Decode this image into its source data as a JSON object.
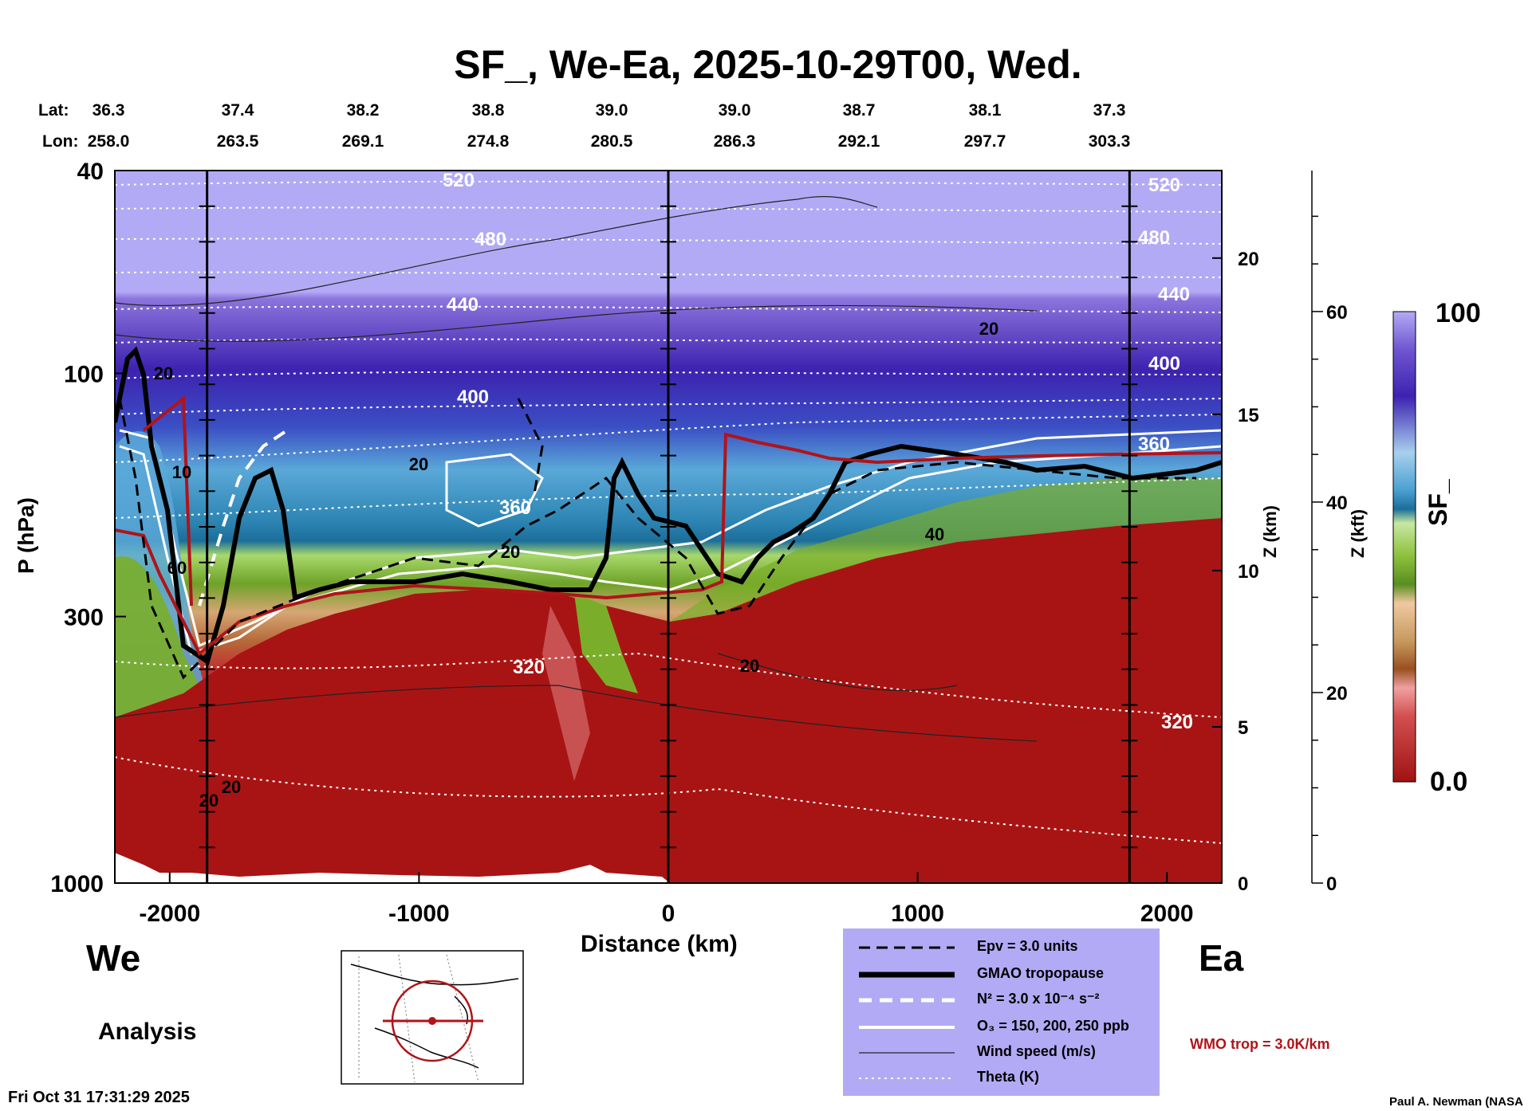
{
  "chart_data": {
    "type": "heatmap",
    "title": "SF_, We-Ea, 2025-10-29T00, Wed.",
    "xlabel": "Distance (km)",
    "ylabel": "P (hPa)",
    "y2label": "Z (km)",
    "y3label": "Z (kft)",
    "colorbar_label": "SF_",
    "colorbar_max_label": "100",
    "colorbar_min_label": "0.0",
    "xlim": [
      -2220,
      2220
    ],
    "ylim": [
      1000,
      40
    ],
    "x_ticks": [
      "-2000",
      "-1000",
      "0",
      "1000",
      "2000"
    ],
    "x_tick_values": [
      -2000,
      -1000,
      0,
      1000,
      2000
    ],
    "y_ticks": [
      "40",
      "100",
      "300",
      "1000"
    ],
    "y_tick_values": [
      40,
      100,
      300,
      1000
    ],
    "z_km_ticks": [
      "0",
      "5",
      "10",
      "15",
      "20"
    ],
    "z_km_values": [
      0,
      5,
      10,
      15,
      20
    ],
    "z_kft_ticks": [
      "0",
      "20",
      "40",
      "60"
    ],
    "z_kft_values": [
      0,
      20,
      40,
      60
    ],
    "lat_label": "Lat:",
    "lon_label": "Lon:",
    "lat": [
      "36.3",
      "37.4",
      "38.2",
      "38.8",
      "39.0",
      "39.0",
      "38.7",
      "38.1",
      "37.3"
    ],
    "lon": [
      "258.0",
      "263.5",
      "269.1",
      "274.8",
      "280.5",
      "286.3",
      "292.1",
      "297.7",
      "303.3"
    ],
    "vertical_lines_km": [
      -1850,
      0,
      1850
    ],
    "theta_labels": [
      "520",
      "480",
      "440",
      "400",
      "360",
      "320",
      "520",
      "480",
      "440",
      "400",
      "360",
      "320"
    ],
    "wind_labels": [
      "20",
      "20",
      "20",
      "20",
      "20",
      "20",
      "20",
      "40",
      "10",
      "60"
    ],
    "left_label": "We",
    "right_label": "Ea",
    "analysis_label": "Analysis",
    "timestamp": "Fri Oct 31 17:31:29 2025",
    "credit": "Paul A. Newman (NASA"
  },
  "legend": {
    "items": [
      {
        "label": "Epv = 3.0 units",
        "style": "dashed-black"
      },
      {
        "label": "GMAO tropopause",
        "style": "thick-black"
      },
      {
        "label": "N² = 3.0 x 10⁻⁴ s⁻²",
        "style": "dashed-white"
      },
      {
        "label": "O₃ = 150, 200, 250 ppb",
        "style": "solid-white"
      },
      {
        "label": "Wind speed (m/s)",
        "style": "thin-black"
      },
      {
        "label": "Theta (K)",
        "style": "dotted-white"
      }
    ],
    "wmo_label": "WMO trop = 3.0K/km",
    "background": "#b3aaf5"
  },
  "colors": {
    "stratosphere_top": "#b3aaf5",
    "stratosphere_dark": "#3d22b0",
    "blue": "#5aa8d8",
    "green": "#7aae2a",
    "tan": "#c89a60",
    "troposphere": "#a81414",
    "wmo": "#b0141a"
  }
}
